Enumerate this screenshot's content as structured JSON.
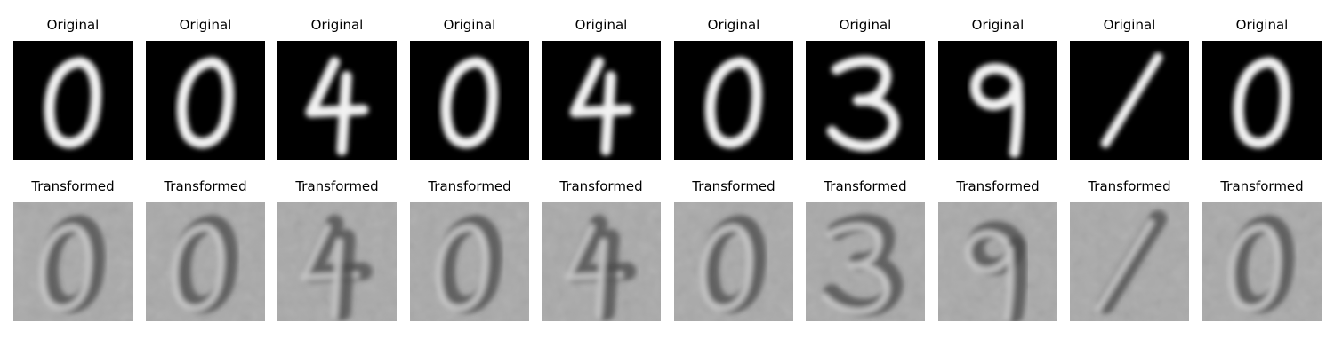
{
  "figure": {
    "row_titles": [
      "Original",
      "Transformed"
    ],
    "digits": [
      "0",
      "0",
      "4",
      "0",
      "4",
      "0",
      "3",
      "9",
      "1",
      "0"
    ]
  },
  "colors": {
    "original_background": "#000000",
    "original_stroke": "#f2f2f2",
    "transformed_background": "#a9a9a9",
    "transformed_stroke_dark": "#4a4a4a",
    "transformed_stroke_light": "#d4d4d4"
  }
}
